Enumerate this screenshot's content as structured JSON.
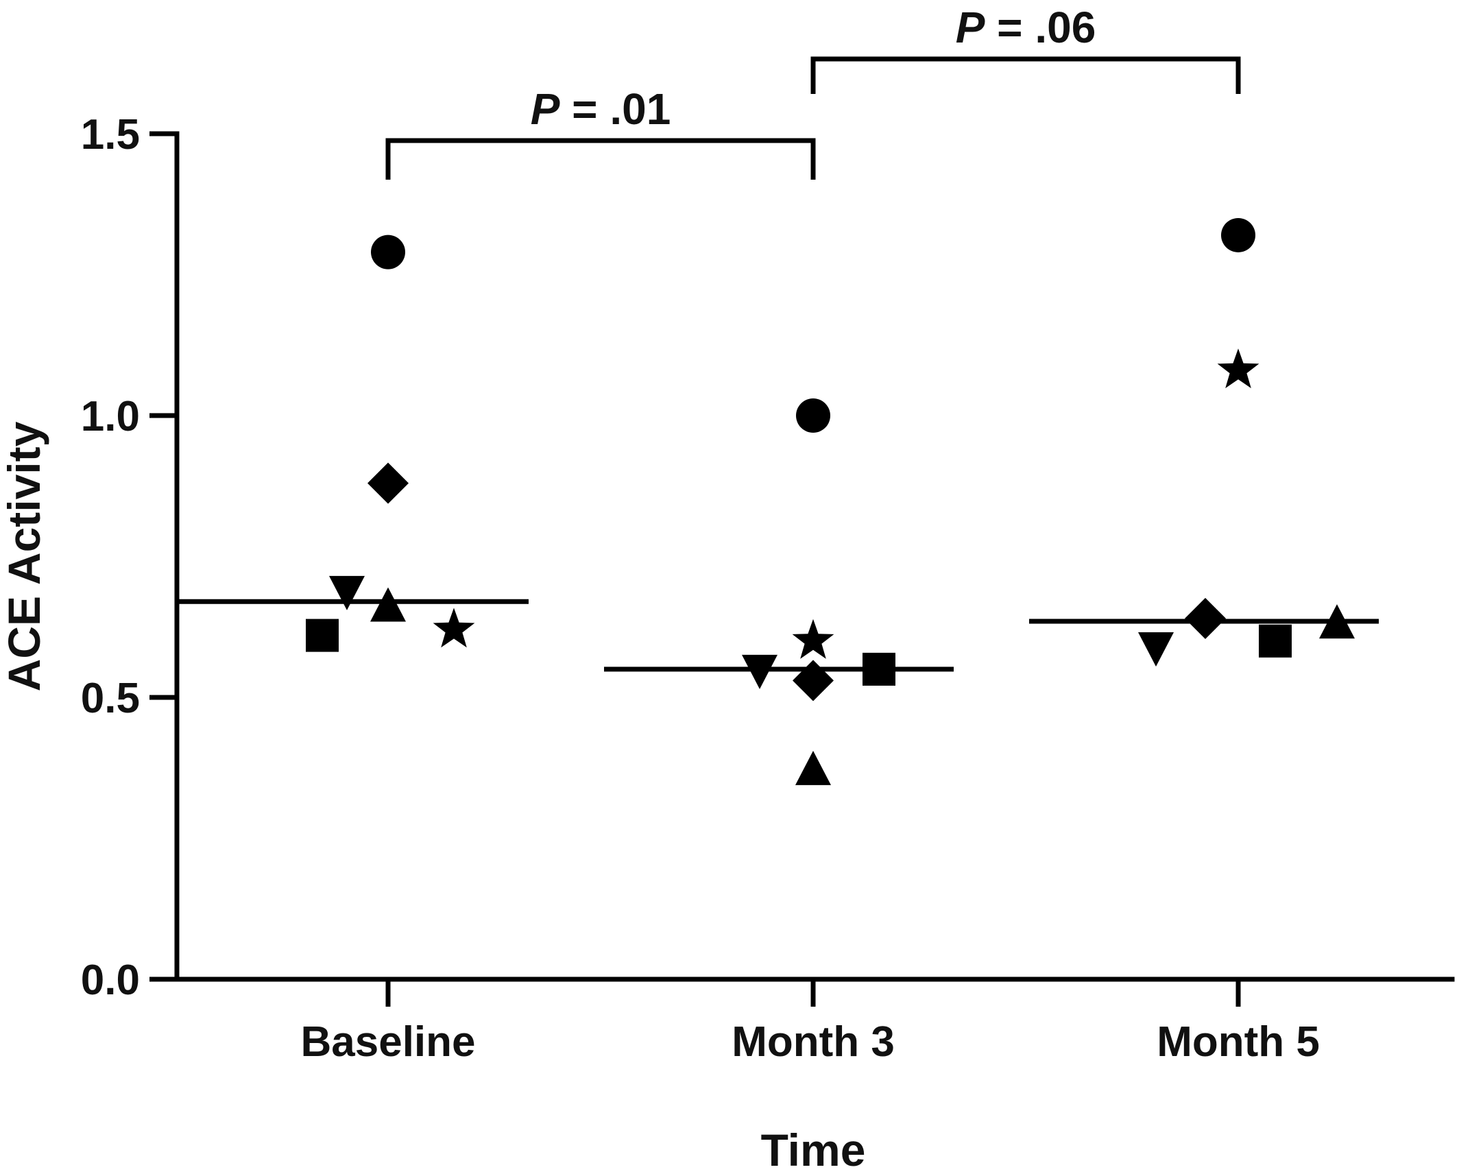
{
  "chart_data": {
    "type": "scatter",
    "xlabel": "Time",
    "ylabel": "ACE Activity",
    "categories": [
      "Baseline",
      "Month 3",
      "Month 5"
    ],
    "ylim": [
      0,
      1.5
    ],
    "yticks": [
      "0.0",
      "0.5",
      "1.0",
      "1.5"
    ],
    "grid": false,
    "legend": "none",
    "series": [
      {
        "marker": "circle",
        "values": [
          1.29,
          1.0,
          1.32
        ]
      },
      {
        "marker": "diamond",
        "values": [
          0.88,
          0.53,
          0.64
        ]
      },
      {
        "marker": "triangle-down",
        "values": [
          0.69,
          0.55,
          0.59
        ]
      },
      {
        "marker": "triangle-up",
        "values": [
          0.66,
          0.37,
          0.63
        ]
      },
      {
        "marker": "square",
        "values": [
          0.61,
          0.55,
          0.6
        ]
      },
      {
        "marker": "star",
        "values": [
          0.62,
          0.6,
          1.08
        ]
      }
    ],
    "x_offsets": {
      "circle": [
        0,
        0,
        0
      ],
      "diamond": [
        0,
        0,
        -0.8
      ],
      "triangle-down": [
        -1,
        -1.3,
        -2.0
      ],
      "triangle-up": [
        0,
        0,
        2.4
      ],
      "square": [
        -1.6,
        1.6,
        0.9
      ],
      "star": [
        1.6,
        0,
        0
      ]
    },
    "medians": [
      0.67,
      0.55,
      0.635
    ],
    "annotations": [
      {
        "p_label": "P",
        "p_value": " = .01",
        "from": 0,
        "to": 1
      },
      {
        "p_label": "P",
        "p_value": " = .06",
        "from": 1,
        "to": 2
      }
    ],
    "colors": {
      "ink": "#000000"
    }
  }
}
